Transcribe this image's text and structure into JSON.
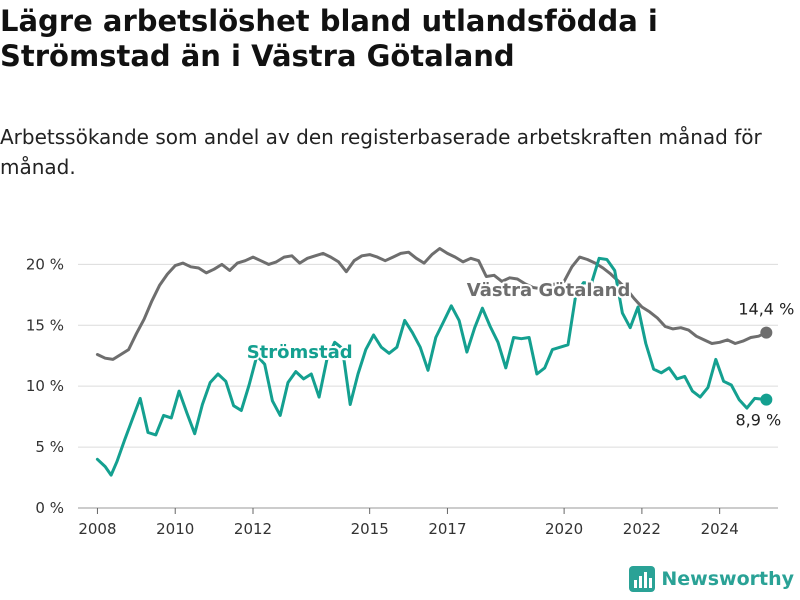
{
  "title": "Lägre arbetslöshet bland utlandsfödda i Strömstad än i Västra Götaland",
  "subtitle": "Arbetssökande som andel av den registerbaserade arbetskraften månad för månad.",
  "brand": {
    "name": "Newsworthy",
    "color": "#2aa296"
  },
  "colors": {
    "stromstad": "#14a090",
    "vastra_gotaland": "#6e6e6e",
    "grid": "#dcdcdc",
    "axis": "#333333"
  },
  "chart_data": {
    "type": "line",
    "title": "Lägre arbetslöshet bland utlandsfödda i Strömstad än i Västra Götaland",
    "subtitle": "Arbetssökande som andel av den registerbaserade arbetskraften månad för månad.",
    "ylim": [
      0,
      22
    ],
    "xlim": [
      2007.5,
      2025.5
    ],
    "y_ticks": [
      0,
      5,
      10,
      15,
      20
    ],
    "y_tick_labels": [
      "0 %",
      "5 %",
      "10 %",
      "15 %",
      "20 %"
    ],
    "x_ticks": [
      2008,
      2010,
      2012,
      2015,
      2017,
      2020,
      2022,
      2024
    ],
    "x_tick_labels": [
      "2008",
      "2010",
      "2012",
      "2015",
      "2017",
      "2020",
      "2022",
      "2024"
    ],
    "grid": true,
    "series": [
      {
        "name": "Västra Götaland",
        "color": "#6e6e6e",
        "end_label": "14,4 %",
        "points": [
          [
            2008.0,
            12.6
          ],
          [
            2008.2,
            12.3
          ],
          [
            2008.4,
            12.2
          ],
          [
            2008.6,
            12.6
          ],
          [
            2008.8,
            13.0
          ],
          [
            2009.0,
            14.3
          ],
          [
            2009.2,
            15.5
          ],
          [
            2009.4,
            17.0
          ],
          [
            2009.6,
            18.3
          ],
          [
            2009.8,
            19.2
          ],
          [
            2010.0,
            19.9
          ],
          [
            2010.2,
            20.1
          ],
          [
            2010.4,
            19.8
          ],
          [
            2010.6,
            19.7
          ],
          [
            2010.8,
            19.3
          ],
          [
            2011.0,
            19.6
          ],
          [
            2011.2,
            20.0
          ],
          [
            2011.4,
            19.5
          ],
          [
            2011.6,
            20.1
          ],
          [
            2011.8,
            20.3
          ],
          [
            2012.0,
            20.6
          ],
          [
            2012.2,
            20.3
          ],
          [
            2012.4,
            20.0
          ],
          [
            2012.6,
            20.2
          ],
          [
            2012.8,
            20.6
          ],
          [
            2013.0,
            20.7
          ],
          [
            2013.2,
            20.1
          ],
          [
            2013.4,
            20.5
          ],
          [
            2013.6,
            20.7
          ],
          [
            2013.8,
            20.9
          ],
          [
            2014.0,
            20.6
          ],
          [
            2014.2,
            20.2
          ],
          [
            2014.4,
            19.4
          ],
          [
            2014.6,
            20.3
          ],
          [
            2014.8,
            20.7
          ],
          [
            2015.0,
            20.8
          ],
          [
            2015.2,
            20.6
          ],
          [
            2015.4,
            20.3
          ],
          [
            2015.6,
            20.6
          ],
          [
            2015.8,
            20.9
          ],
          [
            2016.0,
            21.0
          ],
          [
            2016.2,
            20.5
          ],
          [
            2016.4,
            20.1
          ],
          [
            2016.6,
            20.8
          ],
          [
            2016.8,
            21.3
          ],
          [
            2017.0,
            20.9
          ],
          [
            2017.2,
            20.6
          ],
          [
            2017.4,
            20.2
          ],
          [
            2017.6,
            20.5
          ],
          [
            2017.8,
            20.3
          ],
          [
            2018.0,
            19.0
          ],
          [
            2018.2,
            19.1
          ],
          [
            2018.4,
            18.6
          ],
          [
            2018.6,
            18.9
          ],
          [
            2018.8,
            18.8
          ],
          [
            2019.0,
            18.4
          ],
          [
            2019.2,
            18.1
          ],
          [
            2019.4,
            18.0
          ],
          [
            2019.6,
            18.3
          ],
          [
            2019.8,
            18.4
          ],
          [
            2020.0,
            18.6
          ],
          [
            2020.2,
            19.8
          ],
          [
            2020.4,
            20.6
          ],
          [
            2020.6,
            20.4
          ],
          [
            2020.8,
            20.1
          ],
          [
            2021.0,
            19.7
          ],
          [
            2021.2,
            19.2
          ],
          [
            2021.4,
            18.6
          ],
          [
            2021.6,
            18.0
          ],
          [
            2021.8,
            17.2
          ],
          [
            2022.0,
            16.5
          ],
          [
            2022.2,
            16.1
          ],
          [
            2022.4,
            15.6
          ],
          [
            2022.6,
            14.9
          ],
          [
            2022.8,
            14.7
          ],
          [
            2023.0,
            14.8
          ],
          [
            2023.2,
            14.6
          ],
          [
            2023.4,
            14.1
          ],
          [
            2023.6,
            13.8
          ],
          [
            2023.8,
            13.5
          ],
          [
            2024.0,
            13.6
          ],
          [
            2024.2,
            13.8
          ],
          [
            2024.4,
            13.5
          ],
          [
            2024.6,
            13.7
          ],
          [
            2024.8,
            14.0
          ],
          [
            2025.0,
            14.1
          ],
          [
            2025.2,
            14.4
          ]
        ]
      },
      {
        "name": "Strömstad",
        "color": "#14a090",
        "end_label": "8,9 %",
        "points": [
          [
            2008.0,
            4.0
          ],
          [
            2008.2,
            3.4
          ],
          [
            2008.35,
            2.7
          ],
          [
            2008.5,
            3.8
          ],
          [
            2008.7,
            5.6
          ],
          [
            2008.9,
            7.3
          ],
          [
            2009.1,
            9.0
          ],
          [
            2009.3,
            6.2
          ],
          [
            2009.5,
            6.0
          ],
          [
            2009.7,
            7.6
          ],
          [
            2009.9,
            7.4
          ],
          [
            2010.1,
            9.6
          ],
          [
            2010.3,
            7.8
          ],
          [
            2010.5,
            6.1
          ],
          [
            2010.7,
            8.5
          ],
          [
            2010.9,
            10.3
          ],
          [
            2011.1,
            11.0
          ],
          [
            2011.3,
            10.4
          ],
          [
            2011.5,
            8.4
          ],
          [
            2011.7,
            8.0
          ],
          [
            2011.9,
            10.1
          ],
          [
            2012.1,
            12.5
          ],
          [
            2012.3,
            11.8
          ],
          [
            2012.5,
            8.8
          ],
          [
            2012.7,
            7.6
          ],
          [
            2012.9,
            10.3
          ],
          [
            2013.1,
            11.2
          ],
          [
            2013.3,
            10.6
          ],
          [
            2013.5,
            11.0
          ],
          [
            2013.7,
            9.1
          ],
          [
            2013.9,
            12.2
          ],
          [
            2014.1,
            13.6
          ],
          [
            2014.3,
            13.1
          ],
          [
            2014.5,
            8.5
          ],
          [
            2014.7,
            11.0
          ],
          [
            2014.9,
            13.0
          ],
          [
            2015.1,
            14.2
          ],
          [
            2015.3,
            13.2
          ],
          [
            2015.5,
            12.7
          ],
          [
            2015.7,
            13.2
          ],
          [
            2015.9,
            15.4
          ],
          [
            2016.1,
            14.4
          ],
          [
            2016.3,
            13.2
          ],
          [
            2016.5,
            11.3
          ],
          [
            2016.7,
            14.0
          ],
          [
            2016.9,
            15.3
          ],
          [
            2017.1,
            16.6
          ],
          [
            2017.3,
            15.4
          ],
          [
            2017.5,
            12.8
          ],
          [
            2017.7,
            14.8
          ],
          [
            2017.9,
            16.4
          ],
          [
            2018.1,
            14.9
          ],
          [
            2018.3,
            13.6
          ],
          [
            2018.5,
            11.5
          ],
          [
            2018.7,
            14.0
          ],
          [
            2018.9,
            13.9
          ],
          [
            2019.1,
            14.0
          ],
          [
            2019.3,
            11.0
          ],
          [
            2019.5,
            11.5
          ],
          [
            2019.7,
            13.0
          ],
          [
            2019.9,
            13.2
          ],
          [
            2020.1,
            13.4
          ],
          [
            2020.3,
            17.5
          ],
          [
            2020.5,
            18.5
          ],
          [
            2020.7,
            18.4
          ],
          [
            2020.9,
            20.5
          ],
          [
            2021.1,
            20.4
          ],
          [
            2021.3,
            19.5
          ],
          [
            2021.5,
            16.0
          ],
          [
            2021.7,
            14.8
          ],
          [
            2021.9,
            16.5
          ],
          [
            2022.1,
            13.5
          ],
          [
            2022.3,
            11.4
          ],
          [
            2022.5,
            11.1
          ],
          [
            2022.7,
            11.5
          ],
          [
            2022.9,
            10.6
          ],
          [
            2023.1,
            10.8
          ],
          [
            2023.3,
            9.6
          ],
          [
            2023.5,
            9.1
          ],
          [
            2023.7,
            9.9
          ],
          [
            2023.9,
            12.2
          ],
          [
            2024.1,
            10.4
          ],
          [
            2024.3,
            10.1
          ],
          [
            2024.5,
            8.9
          ],
          [
            2024.7,
            8.2
          ],
          [
            2024.9,
            9.0
          ],
          [
            2025.2,
            8.9
          ]
        ]
      }
    ]
  }
}
